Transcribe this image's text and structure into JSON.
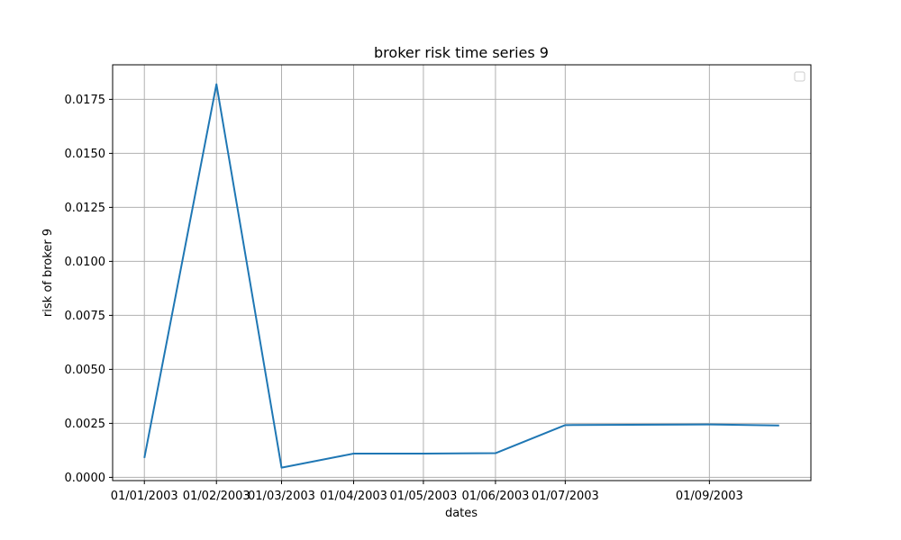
{
  "chart_data": {
    "type": "line",
    "title": "broker risk time series 9",
    "xlabel": "dates",
    "ylabel": "risk of broker 9",
    "x_tick_labels": [
      "01/01/2003",
      "01/02/2003",
      "01/03/2003",
      "01/04/2003",
      "01/05/2003",
      "01/06/2003",
      "01/07/2003",
      "01/09/2003"
    ],
    "y_tick_labels": [
      "0.0000",
      "0.0025",
      "0.0050",
      "0.0075",
      "0.0100",
      "0.0125",
      "0.0150",
      "0.0175"
    ],
    "y_ticks": [
      0,
      0.0025,
      0.005,
      0.0075,
      0.01,
      0.0125,
      0.015,
      0.0175
    ],
    "ylim": [
      -0.00015,
      0.0191
    ],
    "grid": true,
    "legend": "top-right, empty",
    "series": [
      {
        "color": "#1f77b4",
        "x": [
          "01/01/2003",
          "01/02/2003",
          "01/03/2003",
          "01/04/2003",
          "01/05/2003",
          "01/06/2003",
          "01/07/2003",
          "01/09/2003",
          "01/10/2003"
        ],
        "values": [
          0.0009,
          0.0182,
          0.00045,
          0.0011,
          0.0011,
          0.00112,
          0.00242,
          0.00245,
          0.0024
        ]
      }
    ]
  }
}
